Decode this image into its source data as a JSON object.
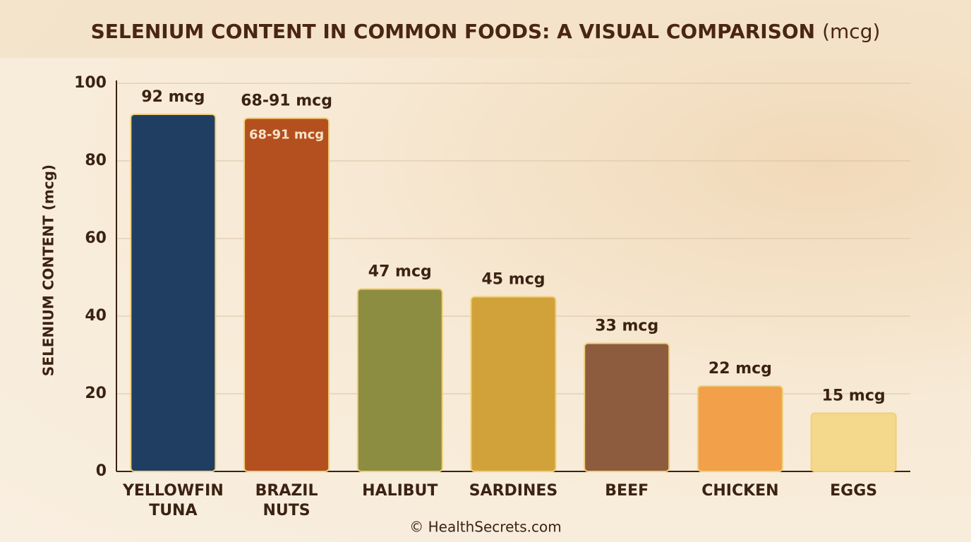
{
  "chart_data": {
    "type": "bar",
    "title": "SELENIUM CONTENT IN COMMON FOODS: A VISUAL COMPARISON",
    "title_unit": "(mcg)",
    "y_label": "SELENIUM CONTENT (mcg)",
    "categories": [
      "YELLOWFIN TUNA",
      "BRAZIL NUTS",
      "HALIBUT",
      "SARDINES",
      "BEEF",
      "CHICKEN",
      "EGGS"
    ],
    "values": [
      92,
      91,
      47,
      45,
      33,
      22,
      15
    ],
    "value_labels": [
      "92 mcg",
      "68-91 mcg",
      "47 mcg",
      "45 mcg",
      "33 mcg",
      "22 mcg",
      "15 mcg"
    ],
    "colors": [
      "#1f3e62",
      "#b4501f",
      "#8c8d40",
      "#d2a23a",
      "#8d5c3e",
      "#f2a04a",
      "#f4d88c"
    ],
    "ylim": [
      0,
      100
    ],
    "yticks": [
      0,
      20,
      40,
      60,
      80,
      100
    ],
    "grid": true,
    "footer": "© HealthSecrets.com"
  }
}
